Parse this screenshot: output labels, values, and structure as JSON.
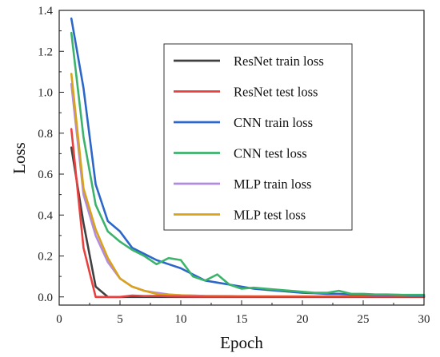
{
  "chart_data": {
    "type": "line",
    "title": "",
    "xlabel": "Epoch",
    "ylabel": "Loss",
    "xlim": [
      0,
      30
    ],
    "ylim": [
      -0.04,
      1.4
    ],
    "x_ticks": [
      0,
      5,
      10,
      15,
      20,
      25,
      30
    ],
    "y_ticks": [
      0.0,
      0.2,
      0.4,
      0.6,
      0.8,
      1.0,
      1.2,
      1.4
    ],
    "y_tick_labels": [
      "0.0",
      "0.2",
      "0.4",
      "0.6",
      "0.8",
      "1.0",
      "1.2",
      "1.4"
    ],
    "grid": false,
    "legend_position": "top-right",
    "series": [
      {
        "name": "ResNet train loss",
        "color": "#404040",
        "x": [
          1,
          2,
          3,
          4,
          5,
          6,
          7,
          8,
          9,
          10,
          12,
          14,
          16,
          18,
          20,
          22,
          24,
          26,
          28,
          30
        ],
        "y": [
          0.73,
          0.36,
          0.05,
          0.0,
          0.0,
          0.0,
          0.0,
          0.0,
          0.0,
          0.0,
          0.0,
          0.0,
          0.0,
          0.0,
          0.0,
          0.0,
          0.0,
          0.0,
          0.0,
          0.0
        ]
      },
      {
        "name": "ResNet test loss",
        "color": "#e8403e",
        "x": [
          1,
          2,
          3,
          4,
          5,
          6,
          7,
          8,
          9,
          10,
          12,
          14,
          16,
          18,
          20,
          22,
          24,
          26,
          28,
          30
        ],
        "y": [
          0.82,
          0.24,
          0.0,
          0.0,
          0.0,
          0.007,
          0.004,
          0.005,
          0.003,
          0.002,
          0.001,
          0.001,
          0.001,
          0.001,
          0.001,
          0.001,
          0.001,
          0.001,
          0.001,
          0.001
        ]
      },
      {
        "name": "CNN train loss",
        "color": "#2b66c8",
        "x": [
          1,
          2,
          3,
          4,
          5,
          6,
          7,
          8,
          9,
          10,
          11,
          12,
          13,
          14,
          15,
          16,
          17,
          18,
          19,
          20,
          21,
          22,
          23,
          24,
          25,
          26,
          27,
          28,
          29,
          30
        ],
        "y": [
          1.36,
          1.02,
          0.55,
          0.37,
          0.32,
          0.24,
          0.21,
          0.18,
          0.16,
          0.14,
          0.11,
          0.08,
          0.07,
          0.06,
          0.05,
          0.04,
          0.035,
          0.03,
          0.025,
          0.02,
          0.018,
          0.015,
          0.015,
          0.012,
          0.012,
          0.01,
          0.01,
          0.01,
          0.008,
          0.008
        ]
      },
      {
        "name": "CNN test loss",
        "color": "#3cb36b",
        "x": [
          1,
          2,
          3,
          4,
          5,
          6,
          7,
          8,
          9,
          10,
          11,
          12,
          13,
          14,
          15,
          16,
          17,
          18,
          19,
          20,
          21,
          22,
          23,
          24,
          25,
          26,
          27,
          28,
          29,
          30
        ],
        "y": [
          1.29,
          0.78,
          0.45,
          0.32,
          0.27,
          0.23,
          0.2,
          0.16,
          0.19,
          0.18,
          0.1,
          0.08,
          0.11,
          0.06,
          0.04,
          0.045,
          0.04,
          0.035,
          0.03,
          0.025,
          0.02,
          0.02,
          0.03,
          0.015,
          0.015,
          0.012,
          0.012,
          0.01,
          0.01,
          0.01
        ]
      },
      {
        "name": "MLP train loss",
        "color": "#b28be0",
        "x": [
          1,
          2,
          3,
          4,
          5,
          6,
          7,
          8,
          9,
          10,
          12,
          14,
          16,
          18,
          20,
          22,
          24,
          26,
          28,
          30
        ],
        "y": [
          1.04,
          0.5,
          0.3,
          0.17,
          0.09,
          0.05,
          0.03,
          0.02,
          0.012,
          0.008,
          0.005,
          0.004,
          0.003,
          0.002,
          0.002,
          0.002,
          0.002,
          0.001,
          0.001,
          0.001
        ]
      },
      {
        "name": "MLP test loss",
        "color": "#d9a21b",
        "x": [
          1,
          2,
          3,
          4,
          5,
          6,
          7,
          8,
          9,
          10,
          12,
          14,
          16,
          18,
          20,
          22,
          24,
          26,
          28,
          30
        ],
        "y": [
          1.09,
          0.53,
          0.33,
          0.19,
          0.09,
          0.05,
          0.03,
          0.015,
          0.01,
          0.008,
          0.005,
          0.004,
          0.003,
          0.003,
          0.002,
          0.002,
          0.002,
          0.002,
          0.001,
          0.001
        ]
      }
    ]
  }
}
